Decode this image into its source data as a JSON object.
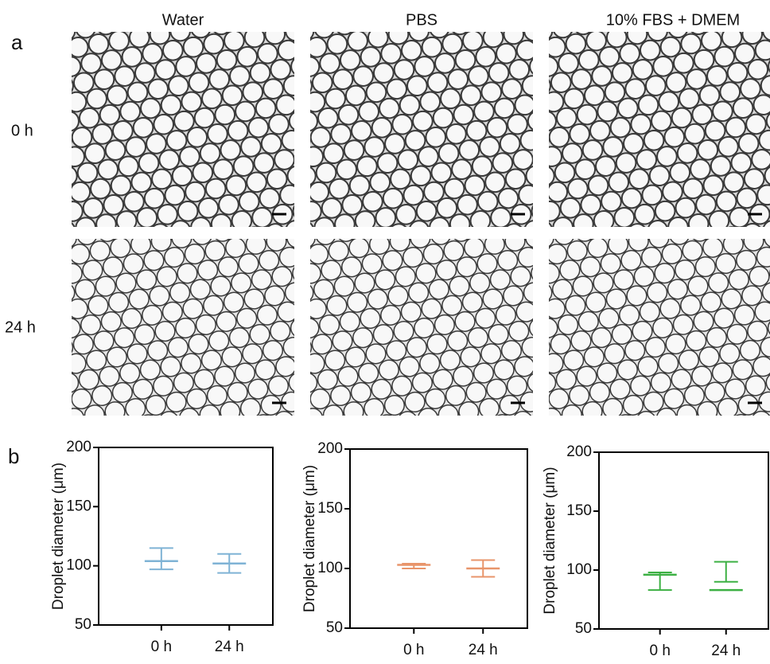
{
  "figure": {
    "panel_labels": [
      "a",
      "b"
    ],
    "column_headers": [
      "Water",
      "PBS",
      "10% FBS + DMEM"
    ],
    "row_labels": [
      "0 h",
      "24 h"
    ]
  },
  "chart_data": [
    {
      "type": "errorbar",
      "ylabel": "Droplet diameter (μm)",
      "categories": [
        "0 h",
        "24 h"
      ],
      "values": [
        104,
        102
      ],
      "lows": [
        97,
        94
      ],
      "highs": [
        115,
        110
      ],
      "color": "#7fb3d5",
      "ylim": [
        50,
        200
      ],
      "yticks": [
        50,
        100,
        150,
        200
      ]
    },
    {
      "type": "errorbar",
      "ylabel": "Droplet diameter (μm)",
      "categories": [
        "0 h",
        "24 h"
      ],
      "values": [
        103,
        100
      ],
      "lows": [
        100,
        93
      ],
      "highs": [
        104,
        107
      ],
      "color": "#e8956b",
      "ylim": [
        50,
        200
      ],
      "yticks": [
        50,
        100,
        150,
        200
      ]
    },
    {
      "type": "errorbar",
      "ylabel": "Droplet diameter (μm)",
      "categories": [
        "0 h",
        "24 h"
      ],
      "values": [
        96,
        83
      ],
      "lows": [
        83,
        90
      ],
      "highs": [
        98,
        107
      ],
      "color": "#3cb043",
      "ylim": [
        50,
        200
      ],
      "yticks": [
        50,
        100,
        150,
        200
      ]
    }
  ]
}
